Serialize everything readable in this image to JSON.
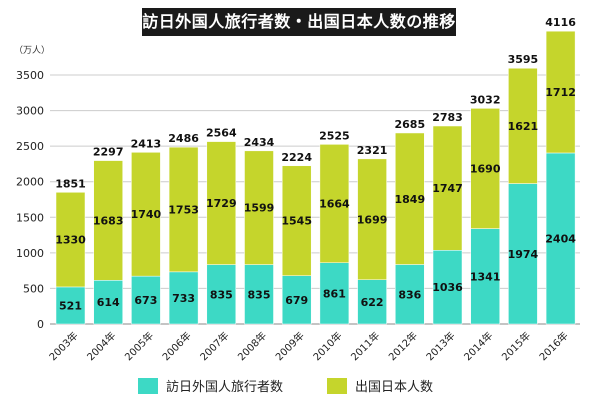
{
  "chart_data": {
    "type": "bar",
    "stacked": true,
    "title": "訪日外国人旅行者数・出国日本人数の推移",
    "unit_label": "（万人）",
    "categories": [
      "2003年",
      "2004年",
      "2005年",
      "2006年",
      "2007年",
      "2008年",
      "2009年",
      "2010年",
      "2011年",
      "2012年",
      "2013年",
      "2014年",
      "2015年",
      "2016年"
    ],
    "series": [
      {
        "name": "訪日外国人旅行者数",
        "color": "#3dd9c5",
        "values": [
          521,
          614,
          673,
          733,
          835,
          835,
          679,
          861,
          622,
          836,
          1036,
          1341,
          1974,
          2404
        ]
      },
      {
        "name": "出国日本人数",
        "color": "#c5d52c",
        "values": [
          1330,
          1683,
          1740,
          1753,
          1729,
          1599,
          1545,
          1664,
          1699,
          1849,
          1747,
          1690,
          1621,
          1712
        ]
      }
    ],
    "totals": [
      1851,
      2297,
      2413,
      2486,
      2564,
      2434,
      2224,
      2525,
      2321,
      2685,
      2783,
      3032,
      3595,
      4116
    ],
    "yticks": [
      0,
      500,
      1000,
      1500,
      2000,
      2500,
      3000,
      3500
    ],
    "ylim": [
      0,
      4200
    ],
    "grid": true,
    "legend_position": "bottom"
  }
}
